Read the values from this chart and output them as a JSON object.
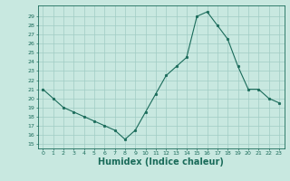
{
  "x": [
    0,
    1,
    2,
    3,
    4,
    5,
    6,
    7,
    8,
    9,
    10,
    11,
    12,
    13,
    14,
    15,
    16,
    17,
    18,
    19,
    20,
    21,
    22,
    23
  ],
  "y": [
    21,
    20,
    19,
    18.5,
    18,
    17.5,
    17,
    16.5,
    15.5,
    16.5,
    18.5,
    20.5,
    22.5,
    23.5,
    24.5,
    29,
    29.5,
    28,
    26.5,
    23.5,
    21,
    21,
    20,
    19.5
  ],
  "line_color": "#1a6b5a",
  "marker_color": "#1a6b5a",
  "bg_color": "#c8e8e0",
  "grid_color": "#a0ccc4",
  "xlabel": "Humidex (Indice chaleur)",
  "xlabel_fontsize": 7,
  "ytick_min": 15,
  "ytick_max": 29,
  "xtick_min": 0,
  "xtick_max": 23
}
